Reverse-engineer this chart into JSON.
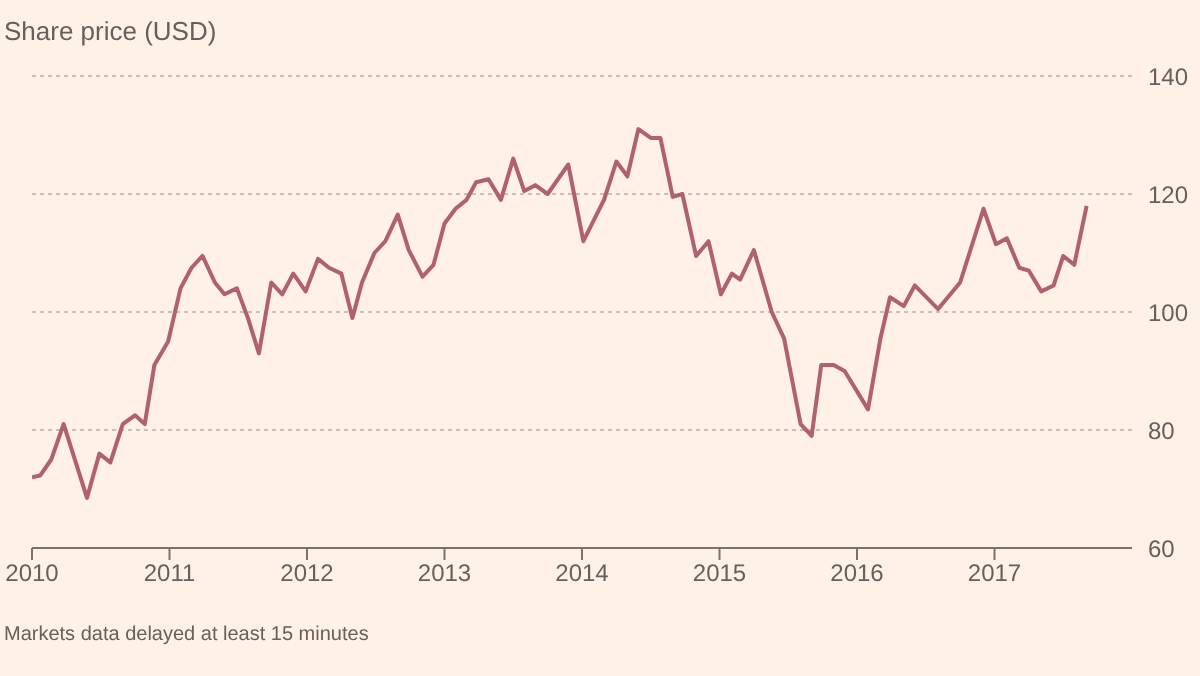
{
  "chart_data": {
    "type": "line",
    "subtitle": "Share price (USD)",
    "annotations": [
      "Markets data delayed at least 15 minutes"
    ],
    "x": [
      2010.0,
      2010.06,
      2010.14,
      2010.23,
      2010.4,
      2010.49,
      2010.57,
      2010.66,
      2010.75,
      2010.82,
      2010.89,
      2010.99,
      2011.08,
      2011.16,
      2011.24,
      2011.33,
      2011.4,
      2011.49,
      2011.57,
      2011.65,
      2011.74,
      2011.82,
      2011.9,
      2011.99,
      2012.08,
      2012.16,
      2012.25,
      2012.33,
      2012.4,
      2012.49,
      2012.57,
      2012.66,
      2012.74,
      2012.84,
      2012.92,
      2013.0,
      2013.08,
      2013.16,
      2013.23,
      2013.32,
      2013.41,
      2013.5,
      2013.58,
      2013.66,
      2013.75,
      2013.9,
      2014.01,
      2014.16,
      2014.25,
      2014.33,
      2014.41,
      2014.5,
      2014.57,
      2014.66,
      2014.73,
      2014.83,
      2014.92,
      2015.01,
      2015.09,
      2015.15,
      2015.25,
      2015.38,
      2015.47,
      2015.59,
      2015.67,
      2015.74,
      2015.83,
      2015.91,
      2016.08,
      2016.17,
      2016.24,
      2016.34,
      2016.42,
      2016.59,
      2016.75,
      2016.92,
      2017.01,
      2017.09,
      2017.18,
      2017.25,
      2017.34,
      2017.43,
      2017.5,
      2017.58,
      2017.67
    ],
    "series": [
      {
        "color": "#b0606e",
        "values": [
          72,
          72.3,
          75,
          81,
          68.5,
          76,
          74.5,
          81,
          82.5,
          81,
          91,
          95,
          104,
          107.5,
          109.5,
          105,
          103,
          104,
          99,
          93,
          105,
          103,
          106.5,
          103.5,
          109,
          107.5,
          106.5,
          99,
          105,
          110,
          112,
          116.5,
          110.5,
          106,
          108,
          115,
          117.5,
          119,
          122,
          122.5,
          119,
          126,
          120.5,
          121.5,
          120,
          125,
          112,
          119,
          125.5,
          123,
          131,
          129.5,
          129.5,
          119.5,
          120,
          109.5,
          112,
          103,
          106.5,
          105.5,
          110.5,
          100,
          95.5,
          81,
          79,
          91,
          91,
          90,
          83.5,
          95.5,
          102.5,
          101,
          104.5,
          100.5,
          105,
          117.5,
          111.5,
          112.5,
          107.5,
          107,
          103.5,
          104.5,
          109.5,
          108,
          118
        ]
      }
    ],
    "xlim": [
      2010,
      2018
    ],
    "xticks": [
      2010,
      2011,
      2012,
      2013,
      2014,
      2015,
      2016,
      2017
    ],
    "ylim": [
      60,
      140
    ],
    "yticks": [
      60,
      80,
      100,
      120,
      140
    ],
    "grid": "y",
    "legend": false,
    "marker": "none",
    "line_style": "solid"
  }
}
